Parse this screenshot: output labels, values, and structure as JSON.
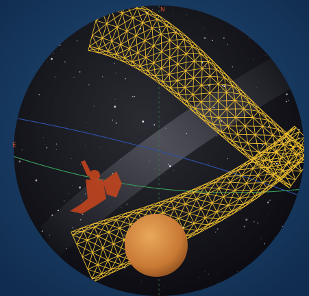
{
  "labels": {
    "north": "N",
    "east": "E"
  }
}
